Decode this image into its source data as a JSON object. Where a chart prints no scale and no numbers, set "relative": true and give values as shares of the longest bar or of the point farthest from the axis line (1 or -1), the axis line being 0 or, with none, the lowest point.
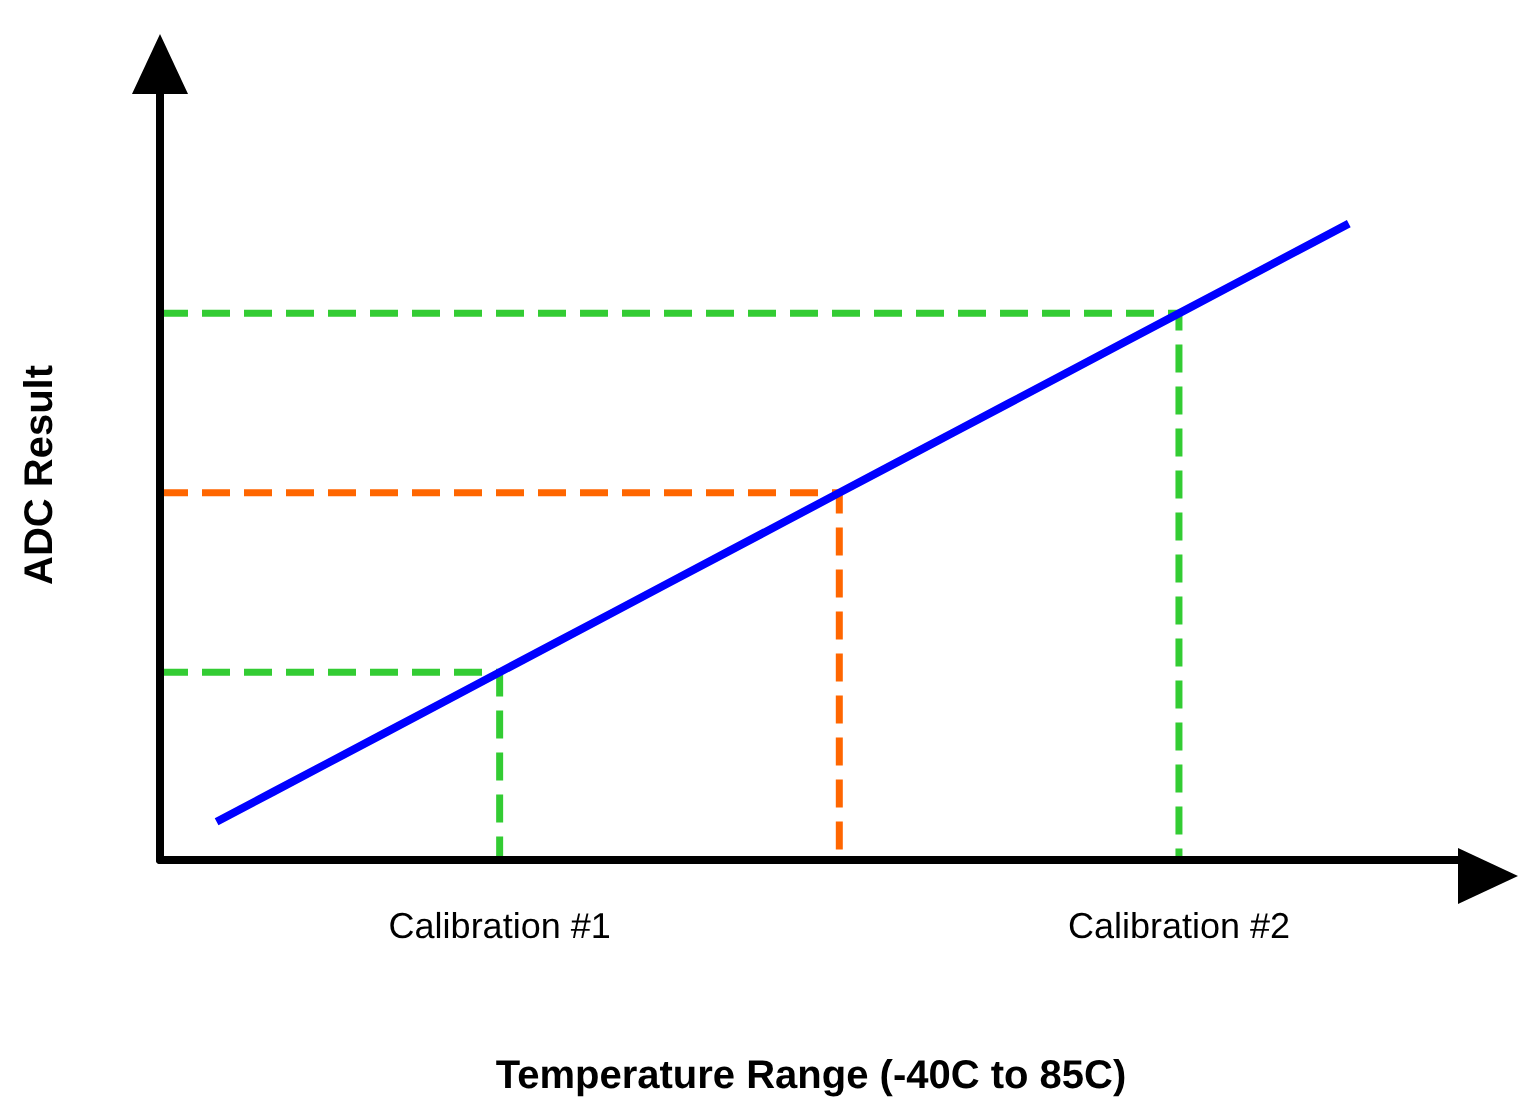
{
  "chart_data": {
    "type": "line",
    "relative": true,
    "xlabel": "Temperature Range (-40C to 85C)",
    "ylabel": "ADC Result",
    "categories": [
      null,
      null,
      null,
      null,
      null,
      null,
      "Calibration #1",
      null,
      null,
      null,
      null,
      null,
      null,
      null,
      null,
      null,
      null,
      null,
      "Calibration #2",
      null,
      null,
      null,
      null,
      null
    ],
    "series": [
      {
        "color": "#0000ff",
        "line_style": "solid",
        "values": [
          null,
          0.06,
          0.107,
          0.154,
          0.201,
          0.248,
          0.295,
          0.342,
          0.389,
          0.436,
          0.483,
          0.53,
          0.577,
          0.624,
          0.671,
          0.718,
          0.765,
          0.812,
          0.859,
          0.906,
          0.953,
          1.0,
          null,
          null
        ]
      },
      {
        "type": "step",
        "color": "#33cc33",
        "line_style": "dashed",
        "values": [
          0.295,
          0.295,
          0.295,
          0.295,
          0.295,
          0.295,
          0.295,
          0,
          null,
          null,
          null,
          null,
          null,
          null,
          null,
          null,
          null,
          null,
          null,
          null,
          null,
          null,
          null,
          null
        ]
      },
      {
        "type": "step",
        "color": "#ff6600",
        "line_style": "dashed",
        "values": [
          0.577,
          0.577,
          0.577,
          0.577,
          0.577,
          0.577,
          0.577,
          0.577,
          0.577,
          0.577,
          0.577,
          0.577,
          0.577,
          0,
          null,
          null,
          null,
          null,
          null,
          null,
          null,
          null,
          null,
          null
        ]
      },
      {
        "type": "step",
        "color": "#33cc33",
        "line_style": "dashed",
        "values": [
          0.859,
          0.859,
          0.859,
          0.859,
          0.859,
          0.859,
          0.859,
          0.859,
          0.859,
          0.859,
          0.859,
          0.859,
          0.859,
          0.859,
          0.859,
          0.859,
          0.859,
          0.859,
          0.859,
          0,
          null,
          null,
          null,
          null
        ]
      }
    ]
  }
}
